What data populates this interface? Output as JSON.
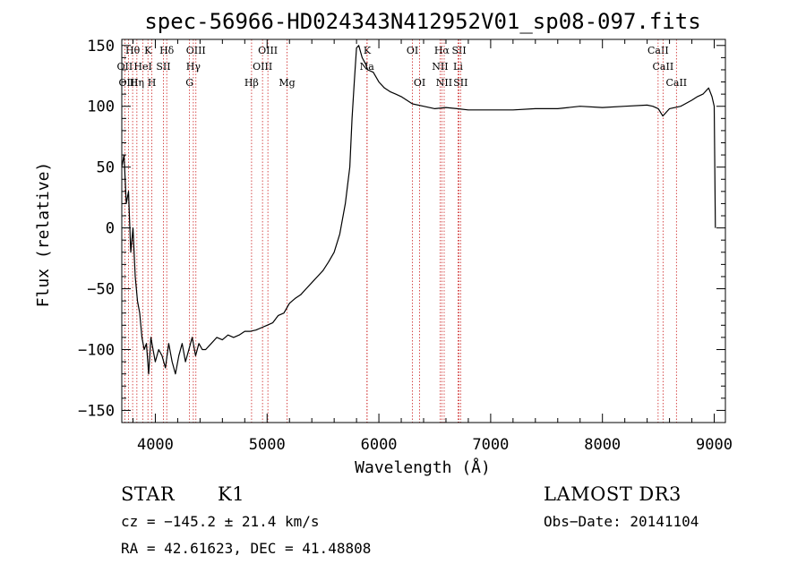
{
  "chart_data": {
    "type": "line",
    "title": "spec-56966-HD024343N412952V01_sp08-097.fits",
    "xlabel": "Wavelength (Å)",
    "ylabel": "Flux (relative)",
    "xlim": [
      3700,
      9100
    ],
    "ylim": [
      -160,
      155
    ],
    "xticks": [
      4000,
      5000,
      6000,
      7000,
      8000,
      9000
    ],
    "xtick_labels": [
      "4000",
      "5000",
      "6000",
      "7000",
      "8000",
      "9000"
    ],
    "yticks": [
      -150,
      -100,
      -50,
      0,
      50,
      100,
      150
    ],
    "ytick_labels": [
      "−150",
      "−100",
      "−50",
      "0",
      "50",
      "100",
      "150"
    ],
    "grid": false,
    "series": [
      {
        "color": "#000000",
        "x": [
          3700,
          3720,
          3740,
          3760,
          3780,
          3800,
          3820,
          3840,
          3860,
          3880,
          3900,
          3920,
          3940,
          3960,
          3980,
          4000,
          4030,
          4060,
          4090,
          4120,
          4150,
          4180,
          4210,
          4240,
          4270,
          4300,
          4330,
          4360,
          4390,
          4420,
          4450,
          4500,
          4550,
          4600,
          4650,
          4700,
          4750,
          4800,
          4850,
          4900,
          4950,
          5000,
          5050,
          5100,
          5150,
          5200,
          5250,
          5300,
          5350,
          5400,
          5450,
          5500,
          5550,
          5600,
          5650,
          5700,
          5720,
          5740,
          5760,
          5780,
          5800,
          5820,
          5850,
          5880,
          5900,
          5950,
          6000,
          6050,
          6100,
          6150,
          6200,
          6300,
          6400,
          6500,
          6600,
          6700,
          6800,
          7000,
          7200,
          7400,
          7600,
          7800,
          8000,
          8200,
          8400,
          8450,
          8500,
          8540,
          8600,
          8700,
          8800,
          8850,
          8900,
          8950,
          8980,
          9000,
          9010
        ],
        "y": [
          50,
          60,
          20,
          30,
          -20,
          0,
          -40,
          -60,
          -70,
          -90,
          -100,
          -95,
          -120,
          -90,
          -100,
          -110,
          -100,
          -105,
          -115,
          -95,
          -110,
          -120,
          -105,
          -95,
          -110,
          -100,
          -90,
          -105,
          -95,
          -100,
          -100,
          -95,
          -90,
          -92,
          -88,
          -90,
          -88,
          -85,
          -85,
          -84,
          -82,
          -80,
          -78,
          -72,
          -70,
          -62,
          -58,
          -55,
          -50,
          -45,
          -40,
          -35,
          -28,
          -20,
          -5,
          20,
          35,
          50,
          90,
          120,
          148,
          150,
          140,
          135,
          130,
          128,
          120,
          115,
          112,
          110,
          108,
          102,
          100,
          98,
          99,
          98,
          97,
          97,
          97,
          98,
          98,
          100,
          99,
          100,
          101,
          100,
          98,
          92,
          98,
          100,
          105,
          108,
          110,
          115,
          108,
          100,
          0
        ]
      }
    ],
    "line_markers": [
      {
        "label": "Hθ",
        "x": 3797,
        "row": 0
      },
      {
        "label": "OII",
        "x": 3727,
        "row": 1
      },
      {
        "label": "OIII",
        "x": 3760,
        "row": 2
      },
      {
        "label": "K",
        "x": 3934,
        "row": 0
      },
      {
        "label": "HeI",
        "x": 3889,
        "row": 1
      },
      {
        "label": "Hη",
        "x": 3835,
        "row": 2
      },
      {
        "label": "SII",
        "x": 4072,
        "row": 1
      },
      {
        "label": "H",
        "x": 3969,
        "row": 2
      },
      {
        "label": "Hδ",
        "x": 4102,
        "row": 0
      },
      {
        "label": "OIII",
        "x": 4363,
        "row": 0
      },
      {
        "label": "Hγ",
        "x": 4340,
        "row": 1
      },
      {
        "label": "G",
        "x": 4306,
        "row": 2
      },
      {
        "label": "Hβ",
        "x": 4861,
        "row": 2
      },
      {
        "label": "OIII",
        "x": 5007,
        "row": 0
      },
      {
        "label": "OIII",
        "x": 4959,
        "row": 1
      },
      {
        "label": "Mg",
        "x": 5178,
        "row": 2
      },
      {
        "label": "K",
        "x": 5895,
        "row": 0
      },
      {
        "label": "Na",
        "x": 5893,
        "row": 1
      },
      {
        "label": "OI",
        "x": 6300,
        "row": 0
      },
      {
        "label": "OI",
        "x": 6364,
        "row": 2
      },
      {
        "label": "Hα",
        "x": 6563,
        "row": 0
      },
      {
        "label": "NII",
        "x": 6548,
        "row": 1
      },
      {
        "label": "NII",
        "x": 6584,
        "row": 2
      },
      {
        "label": "SII",
        "x": 6717,
        "row": 0
      },
      {
        "label": "Li",
        "x": 6708,
        "row": 1
      },
      {
        "label": "SII",
        "x": 6731,
        "row": 2
      },
      {
        "label": "CaII",
        "x": 8498,
        "row": 0
      },
      {
        "label": "CaII",
        "x": 8542,
        "row": 1
      },
      {
        "label": "CaII",
        "x": 8662,
        "row": 2
      }
    ]
  },
  "info": {
    "object_class": "STAR",
    "subclass": "K1",
    "survey": "LAMOST DR3",
    "cz": "cz = −145.2 ± 21.4 km/s",
    "obs_date": "Obs−Date: 20141104",
    "coords": "RA =  42.61623, DEC =  41.48808"
  }
}
